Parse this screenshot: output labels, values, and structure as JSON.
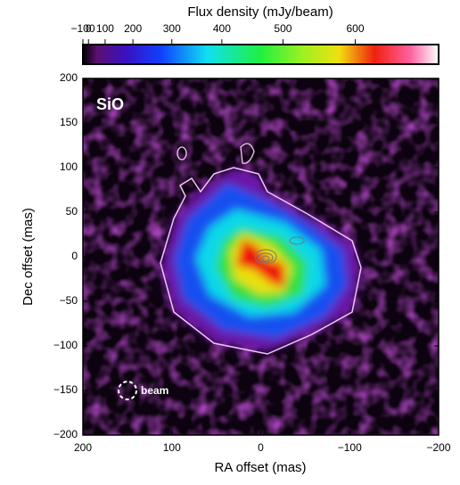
{
  "chart_data": {
    "type": "image",
    "colorbar": {
      "label": "Flux density (mJy/beam)",
      "lim": [
        -100,
        700
      ],
      "scale": "squared",
      "ticks": [
        {
          "value": -100,
          "label": "−100"
        },
        0,
        100,
        200,
        300,
        400,
        500,
        600
      ]
    },
    "annotations": [
      "SiO",
      "beam"
    ],
    "xlabel": "RA offset (mas)",
    "ylabel": "Dec offset (mas)",
    "xlim": [
      200,
      -200
    ],
    "ylim": [
      -200,
      200
    ],
    "xticks": [
      200,
      100,
      0,
      {
        "value": -100,
        "label": "−100"
      },
      {
        "value": -200,
        "label": "−200"
      }
    ],
    "yticks": [
      {
        "value": -200,
        "label": "−200"
      },
      {
        "value": -150,
        "label": "−150"
      },
      {
        "value": -100,
        "label": "−100"
      },
      {
        "value": -50,
        "label": "−50"
      },
      0,
      50,
      100,
      150,
      200
    ]
  }
}
